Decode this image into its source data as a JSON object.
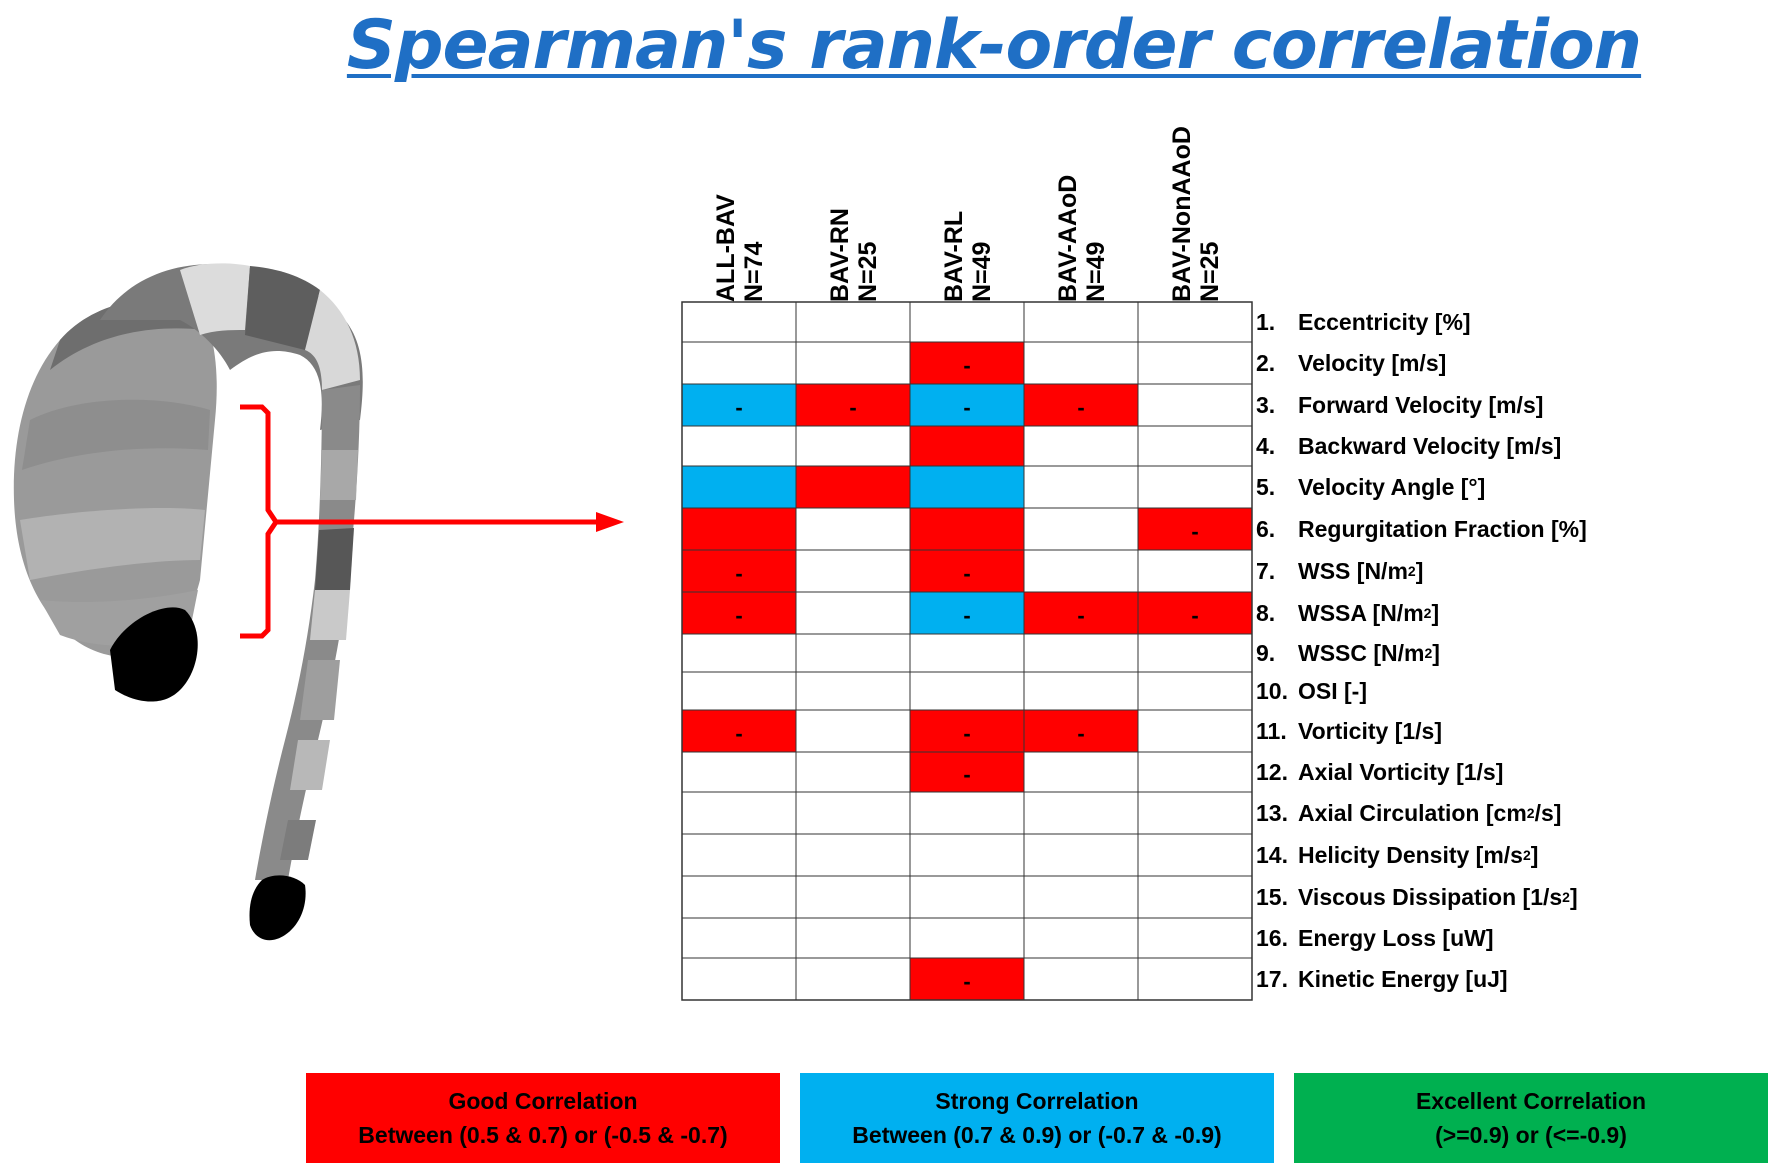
{
  "title": "Spearman's rank-order correlation",
  "colors": {
    "good": "#FF0000",
    "strong": "#00B0F0",
    "excellent": "#00B050",
    "title": "#1F6FC5"
  },
  "chart_data": {
    "type": "heatmap",
    "title": "Spearman's rank-order correlation",
    "columns": [
      {
        "name": "ALL-BAV",
        "n": "N=74"
      },
      {
        "name": "BAV-RN",
        "n": "N=25"
      },
      {
        "name": "BAV-RL",
        "n": "N=49"
      },
      {
        "name": "BAV-AAoD",
        "n": "N=49"
      },
      {
        "name": "BAV-NonAAoD",
        "n": "N=25"
      }
    ],
    "rows": [
      {
        "num": "1.",
        "label": "Eccentricity [%]",
        "sup": "",
        "suffix": "",
        "cells": [
          "",
          "",
          "",
          "",
          ""
        ],
        "signs": [
          "",
          "",
          "",
          "",
          ""
        ]
      },
      {
        "num": "2.",
        "label": "Velocity [m/s]",
        "sup": "",
        "suffix": "",
        "cells": [
          "",
          "",
          "good",
          "",
          ""
        ],
        "signs": [
          "",
          "",
          "-",
          "",
          ""
        ]
      },
      {
        "num": "3.",
        "label": "Forward Velocity [m/s]",
        "sup": "",
        "suffix": "",
        "cells": [
          "strong",
          "good",
          "strong",
          "good",
          ""
        ],
        "signs": [
          "-",
          "-",
          "-",
          "-",
          ""
        ]
      },
      {
        "num": "4.",
        "label": "Backward Velocity [m/s]",
        "sup": "",
        "suffix": "",
        "cells": [
          "",
          "",
          "good",
          "",
          ""
        ],
        "signs": [
          "",
          "",
          "",
          "",
          ""
        ]
      },
      {
        "num": "5.",
        "label": "Velocity Angle [°]",
        "sup": "",
        "suffix": "",
        "cells": [
          "strong",
          "good",
          "strong",
          "",
          ""
        ],
        "signs": [
          "",
          "",
          "",
          "",
          ""
        ]
      },
      {
        "num": "6.",
        "label": "Regurgitation Fraction [%]",
        "sup": "",
        "suffix": "",
        "cells": [
          "good",
          "",
          "good",
          "",
          "good"
        ],
        "signs": [
          "",
          "",
          "",
          "",
          "-"
        ]
      },
      {
        "num": "7.",
        "label": "WSS [N/m",
        "sup": "2",
        "suffix": "]",
        "cells": [
          "good",
          "",
          "good",
          "",
          ""
        ],
        "signs": [
          "-",
          "",
          "-",
          "",
          ""
        ]
      },
      {
        "num": "8.",
        "label": "WSSA [N/m",
        "sup": "2",
        "suffix": "]",
        "cells": [
          "good",
          "",
          "strong",
          "good",
          "good"
        ],
        "signs": [
          "-",
          "",
          "-",
          "-",
          "-"
        ]
      },
      {
        "num": "9.",
        "label": "WSSC [N/m",
        "sup": "2",
        "suffix": "]",
        "cells": [
          "",
          "",
          "",
          "",
          ""
        ],
        "signs": [
          "",
          "",
          "",
          "",
          ""
        ]
      },
      {
        "num": "10.",
        "label": "OSI [-]",
        "sup": "",
        "suffix": "",
        "cells": [
          "",
          "",
          "",
          "",
          ""
        ],
        "signs": [
          "",
          "",
          "",
          "",
          ""
        ]
      },
      {
        "num": "11.",
        "label": "Vorticity [1/s]",
        "sup": "",
        "suffix": "",
        "cells": [
          "good",
          "",
          "good",
          "good",
          ""
        ],
        "signs": [
          "-",
          "",
          "-",
          "-",
          ""
        ]
      },
      {
        "num": "12.",
        "label": "Axial Vorticity [1/s]",
        "sup": "",
        "suffix": "",
        "cells": [
          "",
          "",
          "good",
          "",
          ""
        ],
        "signs": [
          "",
          "",
          "-",
          "",
          ""
        ]
      },
      {
        "num": "13.",
        "label": "Axial Circulation [cm",
        "sup": "2",
        "suffix": "/s]",
        "cells": [
          "",
          "",
          "",
          "",
          ""
        ],
        "signs": [
          "",
          "",
          "",
          "",
          ""
        ]
      },
      {
        "num": "14.",
        "label": "Helicity Density [m/s",
        "sup": "2",
        "suffix": "]",
        "cells": [
          "",
          "",
          "",
          "",
          ""
        ],
        "signs": [
          "",
          "",
          "",
          "",
          ""
        ]
      },
      {
        "num": "15.",
        "label": "Viscous Dissipation [1/s",
        "sup": "2",
        "suffix": "]",
        "cells": [
          "",
          "",
          "",
          "",
          ""
        ],
        "signs": [
          "",
          "",
          "",
          "",
          ""
        ]
      },
      {
        "num": "16.",
        "label": "Energy Loss [uW]",
        "sup": "",
        "suffix": "",
        "cells": [
          "",
          "",
          "",
          "",
          ""
        ],
        "signs": [
          "",
          "",
          "",
          "",
          ""
        ]
      },
      {
        "num": "17.",
        "label": "Kinetic Energy [uJ]",
        "sup": "",
        "suffix": "",
        "cells": [
          "",
          "",
          "good",
          "",
          ""
        ],
        "signs": [
          "",
          "",
          "-",
          "",
          ""
        ]
      }
    ],
    "legend": [
      {
        "key": "good",
        "label": "Good Correlation",
        "range": "Between (0.5 & 0.7) or (-0.5 & -0.7)"
      },
      {
        "key": "strong",
        "label": "Strong Correlation",
        "range": "Between (0.7 & 0.9) or (-0.7 & -0.9)"
      },
      {
        "key": "excellent",
        "label": "Excellent Correlation",
        "range": "(>=0.9) or (<=-0.9)"
      }
    ]
  }
}
